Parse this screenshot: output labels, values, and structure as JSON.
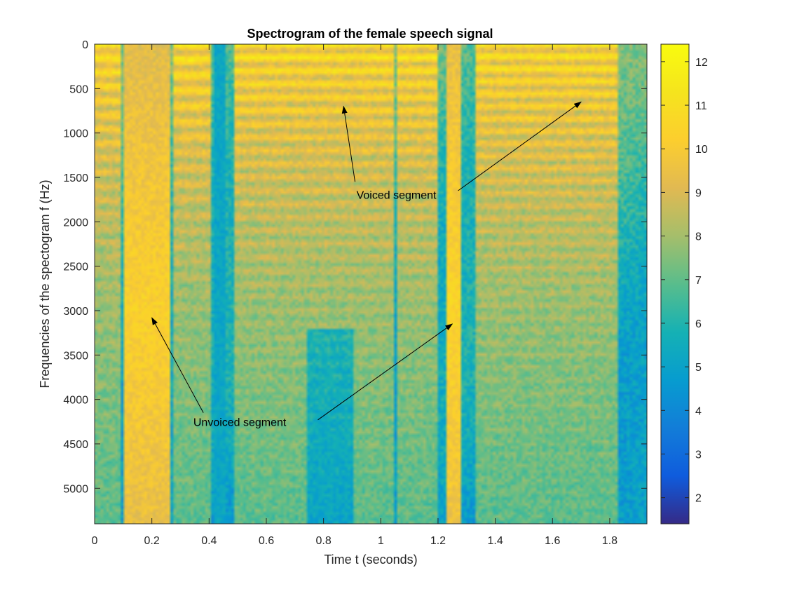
{
  "chart_data": {
    "type": "heatmap",
    "title": "Spectrogram of the female speech signal",
    "xlabel": "Time t (seconds)",
    "ylabel": "Frequencies of the spectogram f (Hz)",
    "xlim": [
      0,
      1.93
    ],
    "ylim": [
      0,
      5400
    ],
    "y_reversed": true,
    "xticks": [
      0,
      0.2,
      0.4,
      0.6,
      0.8,
      1,
      1.2,
      1.4,
      1.6,
      1.8
    ],
    "xtick_labels": [
      "0",
      "0.2",
      "0.4",
      "0.6",
      "0.8",
      "1",
      "1.2",
      "1.4",
      "1.6",
      "1.8"
    ],
    "yticks": [
      0,
      500,
      1000,
      1500,
      2000,
      2500,
      3000,
      3500,
      4000,
      4500,
      5000
    ],
    "ytick_labels": [
      "0",
      "500",
      "1000",
      "1500",
      "2000",
      "2500",
      "3000",
      "3500",
      "4000",
      "4500",
      "5000"
    ],
    "colorbar": {
      "min": 1.4,
      "max": 12.4,
      "ticks": [
        2,
        3,
        4,
        5,
        6,
        7,
        8,
        9,
        10,
        11,
        12
      ],
      "tick_labels": [
        "2",
        "3",
        "4",
        "5",
        "6",
        "7",
        "8",
        "9",
        "10",
        "11",
        "12"
      ],
      "colormap": "parula"
    },
    "voiced_regions": [
      {
        "t_start": 0.0,
        "t_end": 0.09,
        "f0": 160
      },
      {
        "t_start": 0.27,
        "t_end": 0.41,
        "f0": 175
      },
      {
        "t_start": 0.49,
        "t_end": 1.05,
        "f0": 150
      },
      {
        "t_start": 1.06,
        "t_end": 1.2,
        "f0": 150
      },
      {
        "t_start": 1.33,
        "t_end": 1.83,
        "f0": 140
      }
    ],
    "unvoiced_regions": [
      {
        "t_start": 0.1,
        "t_end": 0.26,
        "level": 10.3
      },
      {
        "t_start": 1.23,
        "t_end": 1.28,
        "level": 10.5
      }
    ],
    "annotations": [
      {
        "text": "Voiced segment",
        "text_x": 0.915,
        "text_y": 1740,
        "arrows": [
          {
            "from": [
              0.91,
              1550
            ],
            "to": [
              0.87,
              700
            ]
          },
          {
            "from": [
              1.27,
              1650
            ],
            "to": [
              1.7,
              650
            ]
          }
        ]
      },
      {
        "text": "Unvoiced segment",
        "text_x": 0.345,
        "text_y": 4300,
        "arrows": [
          {
            "from": [
              0.38,
              4150
            ],
            "to": [
              0.2,
              3080
            ]
          },
          {
            "from": [
              0.78,
              4230
            ],
            "to": [
              1.25,
              3150
            ]
          }
        ]
      }
    ]
  },
  "colors": {
    "axis": "#262626",
    "background": "#ffffff"
  }
}
